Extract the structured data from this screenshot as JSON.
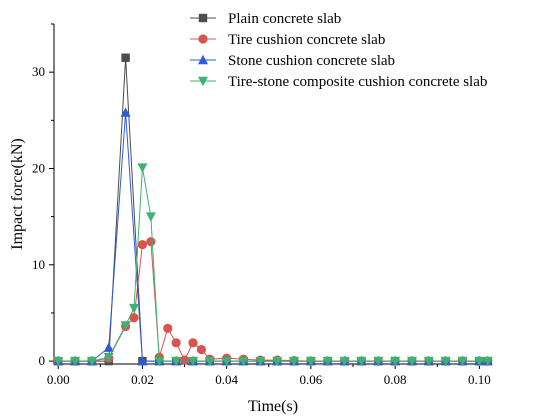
{
  "chart_data": {
    "type": "line",
    "title": "",
    "xlabel": "Time(s)",
    "ylabel": "Impact force(kN)",
    "xlim": [
      -0.001,
      0.103
    ],
    "ylim": [
      -0.3,
      35
    ],
    "xticks": [
      "0.00",
      "0.02",
      "0.04",
      "0.06",
      "0.08",
      "0.10"
    ],
    "xtick_values": [
      0.0,
      0.02,
      0.04,
      0.06,
      0.08,
      0.1
    ],
    "yticks": [
      "0",
      "10",
      "20",
      "30"
    ],
    "ytick_values": [
      0,
      10,
      20,
      30
    ],
    "grid": false,
    "legend_position": "top-right",
    "series": [
      {
        "name": "Plain concrete slab",
        "color": "#4d4d4d",
        "marker": "square",
        "x": [
          0.0,
          0.004,
          0.008,
          0.012,
          0.016,
          0.02,
          0.024,
          0.028,
          0.032,
          0.036,
          0.04,
          0.044,
          0.048,
          0.052,
          0.056,
          0.06,
          0.064,
          0.068,
          0.072,
          0.076,
          0.08,
          0.084,
          0.088,
          0.092,
          0.096,
          0.1,
          0.102
        ],
        "y": [
          0,
          0,
          0,
          0,
          31.5,
          0,
          0,
          0,
          0,
          0,
          0,
          0,
          0,
          0,
          0,
          0,
          0,
          0,
          0,
          0,
          0,
          0,
          0,
          0,
          0,
          0,
          0
        ]
      },
      {
        "name": "Tire cushion concrete slab",
        "color": "#d9534f",
        "marker": "circle",
        "x": [
          0.0,
          0.004,
          0.008,
          0.012,
          0.016,
          0.018,
          0.02,
          0.022,
          0.024,
          0.026,
          0.028,
          0.03,
          0.032,
          0.034,
          0.036,
          0.04,
          0.044,
          0.048,
          0.052,
          0.056,
          0.06,
          0.064,
          0.068,
          0.072,
          0.076,
          0.08,
          0.084,
          0.088,
          0.092,
          0.096,
          0.1,
          0.102
        ],
        "y": [
          0,
          0,
          0,
          0.3,
          3.6,
          4.5,
          12.1,
          12.4,
          0.4,
          3.4,
          1.9,
          0.1,
          1.9,
          1.2,
          0.2,
          0.3,
          0.2,
          0.1,
          0.1,
          0.05,
          0,
          0,
          0,
          0,
          0,
          0,
          0,
          0,
          0,
          0,
          0,
          0
        ]
      },
      {
        "name": "Stone cushion concrete slab",
        "color": "#2f5bd8",
        "marker": "triangle",
        "x": [
          0.0,
          0.004,
          0.008,
          0.012,
          0.016,
          0.02,
          0.024,
          0.028,
          0.032,
          0.036,
          0.04,
          0.044,
          0.048,
          0.052,
          0.056,
          0.06,
          0.064,
          0.068,
          0.072,
          0.076,
          0.08,
          0.084,
          0.088,
          0.092,
          0.096,
          0.1,
          0.102
        ],
        "y": [
          0,
          0,
          0,
          1.4,
          25.8,
          0,
          0,
          0,
          0,
          0,
          0,
          0,
          0,
          0,
          0,
          0,
          0,
          0,
          0,
          0,
          0,
          0,
          0,
          0,
          0,
          0,
          0
        ]
      },
      {
        "name": "Tire-stone composite cushion concrete slab",
        "color": "#3cb371",
        "marker": "triangle-down",
        "x": [
          0.0,
          0.004,
          0.008,
          0.012,
          0.016,
          0.018,
          0.02,
          0.022,
          0.024,
          0.028,
          0.032,
          0.036,
          0.04,
          0.044,
          0.048,
          0.052,
          0.056,
          0.06,
          0.064,
          0.068,
          0.072,
          0.076,
          0.08,
          0.084,
          0.088,
          0.092,
          0.096,
          0.1,
          0.102
        ],
        "y": [
          0,
          0,
          0,
          0.4,
          3.7,
          5.5,
          20.1,
          15.0,
          0,
          0,
          0,
          0,
          0,
          0,
          0,
          0,
          0,
          0,
          0,
          0,
          0,
          0,
          0,
          0,
          0,
          0,
          0,
          0,
          0
        ]
      }
    ]
  }
}
